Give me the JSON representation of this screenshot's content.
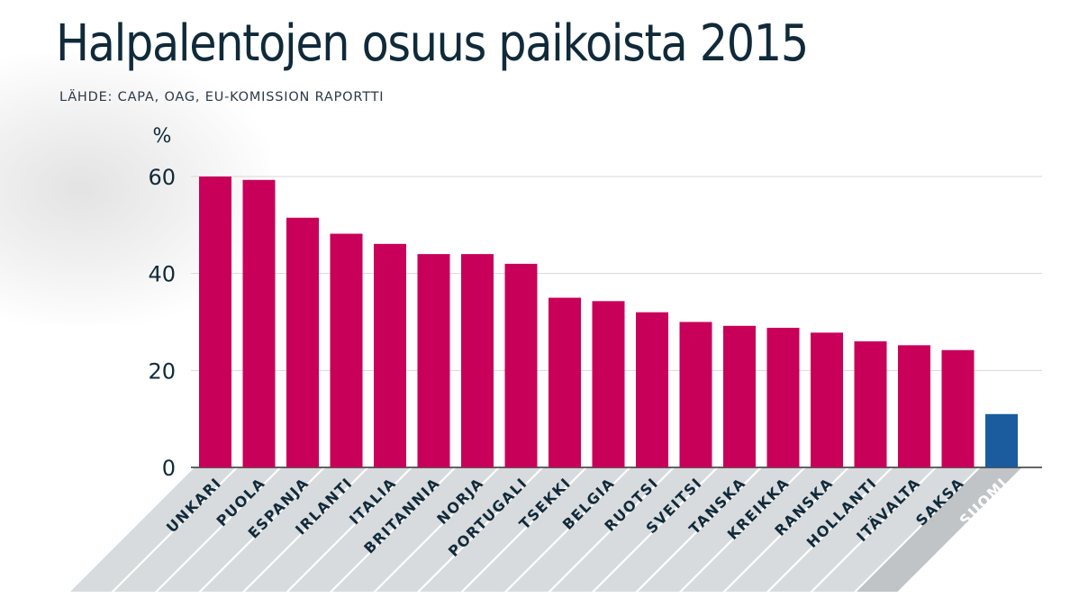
{
  "title": "Halpalentojen osuus paikoista 2015",
  "source": "LÄHDE: CAPA, OAG, EU-KOMISSION RAPORTTI",
  "colors": {
    "bar": "#c8005a",
    "highlight_bar": "#1a5c9e",
    "label_band": "#d8dbdd",
    "highlight_band": "#c0c4c7",
    "gridline": "#d8d8d8",
    "axis": "#333333"
  },
  "chart_data": {
    "type": "bar",
    "unit_label": "%",
    "categories": [
      "UNKARI",
      "PUOLA",
      "ESPANJA",
      "IRLANTI",
      "ITALIA",
      "BRITANNIA",
      "NORJA",
      "PORTUGALI",
      "TSEKKI",
      "BELGIA",
      "RUOTSI",
      "SVEITSI",
      "TANSKA",
      "KREIKKA",
      "RANSKA",
      "HOLLANTI",
      "ITÄVALTA",
      "SAKSA",
      "SUOMI"
    ],
    "values": [
      60,
      59.3,
      51.5,
      48.2,
      46.1,
      44,
      44,
      42,
      35,
      34.3,
      32,
      30,
      29.2,
      28.8,
      27.8,
      26,
      25.2,
      24.2,
      11
    ],
    "highlight": "SUOMI",
    "yticks": [
      0,
      20,
      40,
      60
    ],
    "ylim": [
      0,
      60
    ],
    "grid": true
  }
}
